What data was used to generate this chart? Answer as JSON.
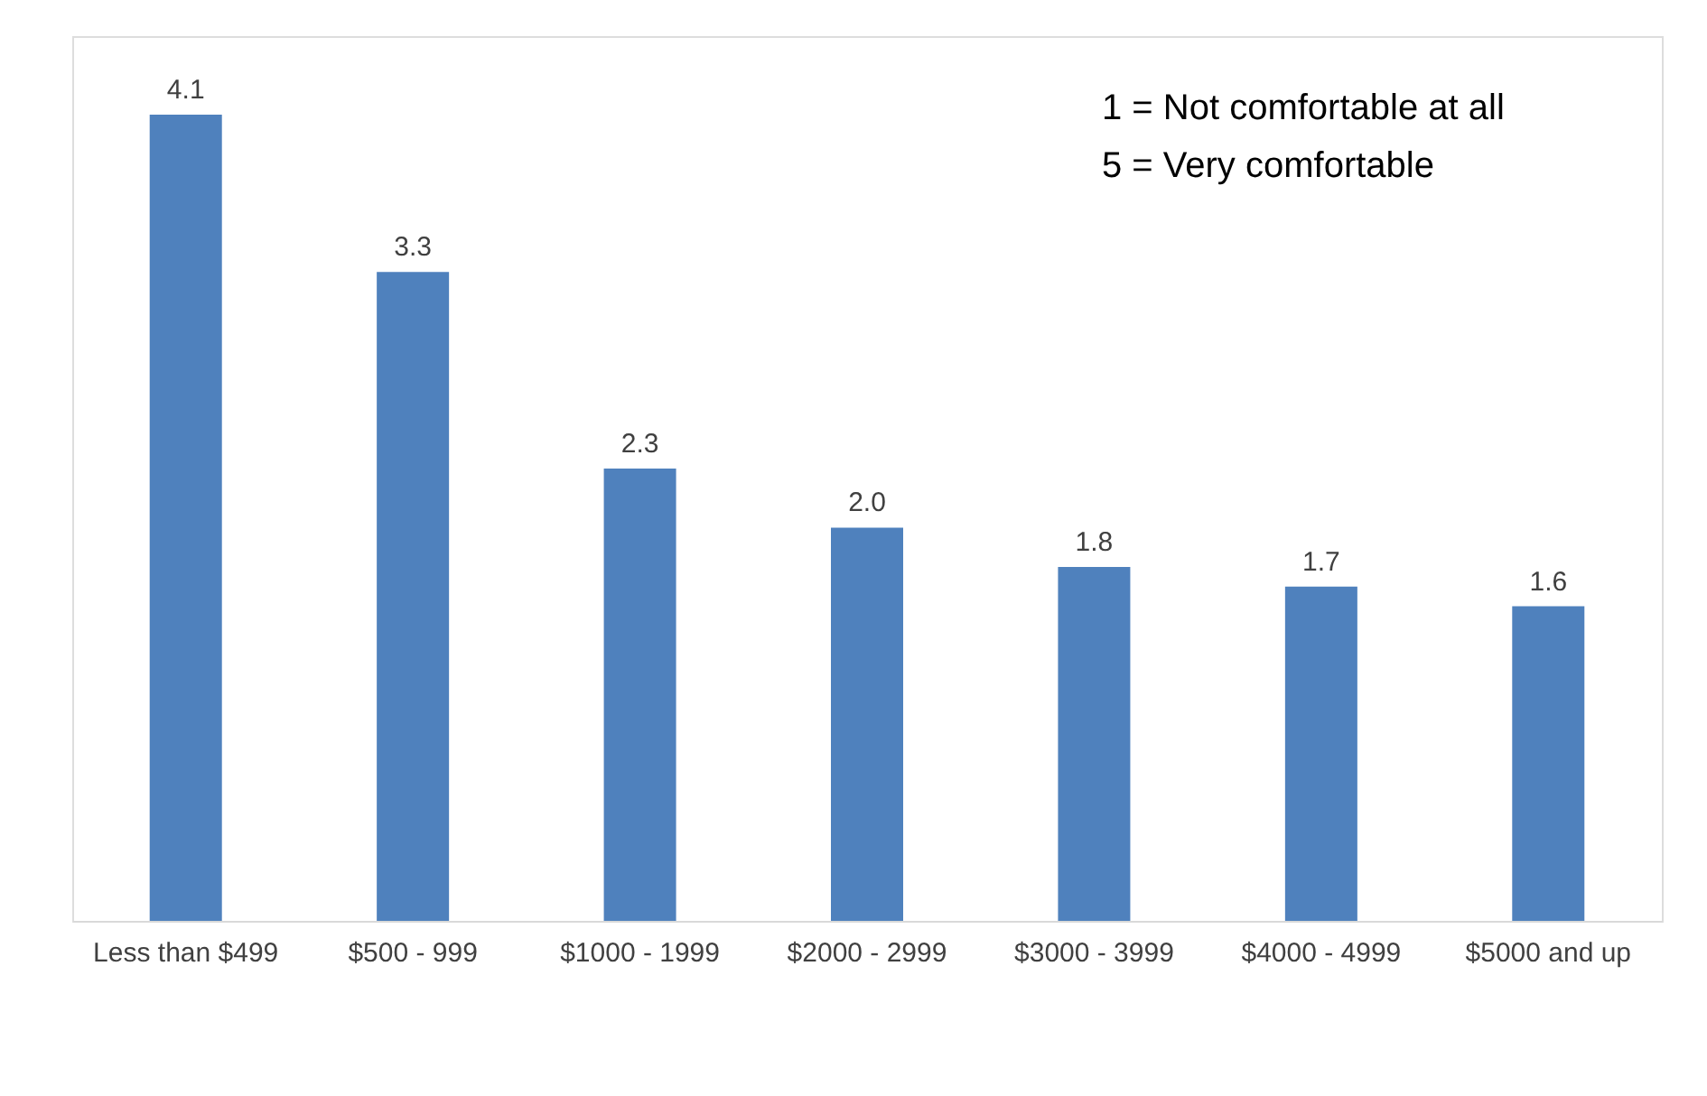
{
  "chart_data": {
    "type": "bar",
    "categories": [
      "Less than $499",
      "$500 - 999",
      "$1000 - 1999",
      "$2000 - 2999",
      "$3000 - 3999",
      "$4000 - 4999",
      "$5000 and up"
    ],
    "values": [
      4.1,
      3.3,
      2.3,
      2.0,
      1.8,
      1.7,
      1.6
    ],
    "color": "#4f81bd",
    "value_labels": [
      "4.1",
      "3.3",
      "2.3",
      "2.0",
      "1.8",
      "1.7",
      "1.6"
    ],
    "annotations": [
      "1 = Not comfortable at all",
      "5 = Very comfortable"
    ]
  }
}
